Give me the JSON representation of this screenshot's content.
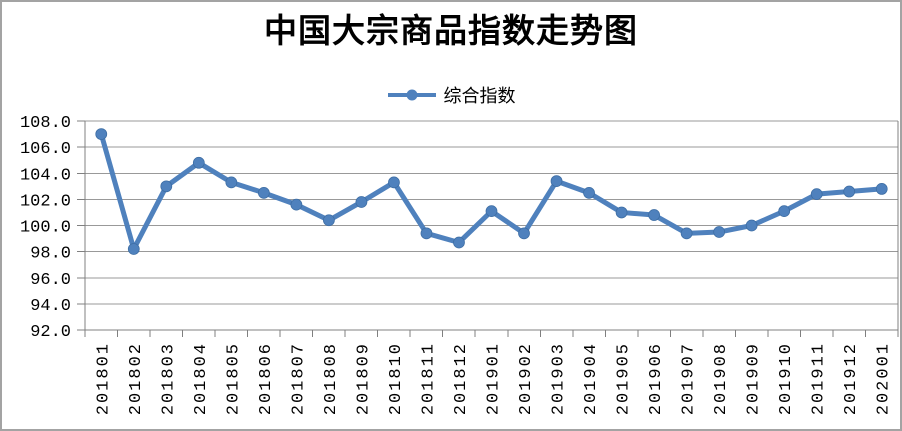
{
  "chart_data": {
    "type": "line",
    "title": "中国大宗商品指数走势图",
    "xlabel": "",
    "ylabel": "",
    "categories": [
      "201801",
      "201802",
      "201803",
      "201804",
      "201805",
      "201806",
      "201807",
      "201808",
      "201809",
      "201810",
      "201811",
      "201812",
      "201901",
      "201902",
      "201903",
      "201904",
      "201905",
      "201906",
      "201907",
      "201908",
      "201909",
      "201910",
      "201911",
      "201912",
      "202001"
    ],
    "series": [
      {
        "name": "综合指数",
        "color": "#4F81BD",
        "values": [
          107.0,
          98.2,
          103.0,
          104.8,
          103.3,
          102.5,
          101.6,
          100.4,
          101.8,
          103.3,
          99.4,
          98.7,
          101.1,
          99.4,
          103.4,
          102.5,
          101.0,
          100.8,
          99.4,
          99.5,
          100.0,
          101.1,
          102.4,
          102.6,
          102.8
        ]
      }
    ],
    "ylim": [
      92.0,
      108.0
    ],
    "ytick_step": 2.0,
    "ytick_labels": [
      "92.0",
      "94.0",
      "96.0",
      "98.0",
      "100.0",
      "102.0",
      "104.0",
      "106.0",
      "108.0"
    ],
    "grid": true,
    "legend_position": "top",
    "x_labels_rotated_degrees": 90
  },
  "colors": {
    "line": "#4F81BD",
    "marker": "#4F81BD",
    "marker_edge": "#3d6da3",
    "grid": "#999999",
    "axis": "#808080",
    "text": "#000000",
    "frame_border": "#a3a3a3",
    "background": "#ffffff"
  }
}
